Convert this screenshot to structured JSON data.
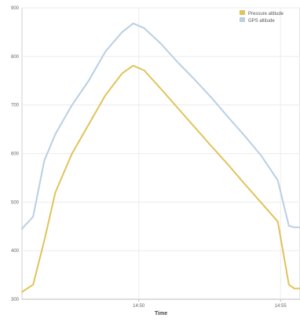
{
  "chart_data": {
    "type": "line",
    "title": "",
    "xlabel": "Time",
    "ylabel": "",
    "x_ticks": [
      "14:50",
      "14:55"
    ],
    "y_ticks": [
      300,
      400,
      500,
      600,
      700,
      800,
      900
    ],
    "ylim": [
      300,
      900
    ],
    "grid": "on",
    "legend_position": "top-right",
    "series": [
      {
        "name": "Pressure altitude",
        "color": "#e0c35a",
        "x": [
          0,
          4,
          8,
          12,
          18,
          24,
          30,
          36,
          40,
          44,
          50,
          56,
          62,
          68,
          74,
          80,
          86,
          92,
          96,
          98,
          100
        ],
        "y": [
          315,
          330,
          420,
          520,
          600,
          660,
          720,
          765,
          781,
          771,
          733,
          694,
          655,
          616,
          578,
          538,
          499,
          460,
          330,
          322,
          322
        ]
      },
      {
        "name": "GPS altitude",
        "color": "#b9cfe3",
        "x": [
          0,
          4,
          8,
          12,
          18,
          24,
          30,
          36,
          40,
          44,
          50,
          56,
          62,
          68,
          74,
          80,
          86,
          92,
          96,
          98,
          100
        ],
        "y": [
          445,
          470,
          585,
          640,
          700,
          750,
          810,
          850,
          868,
          858,
          826,
          788,
          753,
          716,
          676,
          637,
          596,
          545,
          451,
          448,
          448
        ]
      }
    ]
  }
}
